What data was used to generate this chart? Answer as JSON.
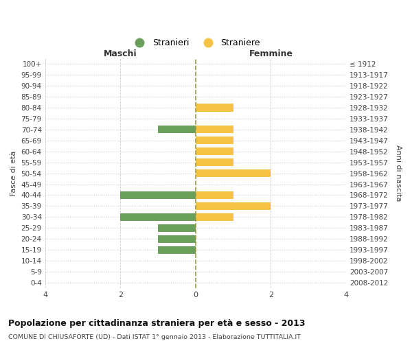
{
  "age_groups": [
    "100+",
    "95-99",
    "90-94",
    "85-89",
    "80-84",
    "75-79",
    "70-74",
    "65-69",
    "60-64",
    "55-59",
    "50-54",
    "45-49",
    "40-44",
    "35-39",
    "30-34",
    "25-29",
    "20-24",
    "15-19",
    "10-14",
    "5-9",
    "0-4"
  ],
  "birth_years": [
    "≤ 1912",
    "1913-1917",
    "1918-1922",
    "1923-1927",
    "1928-1932",
    "1933-1937",
    "1938-1942",
    "1943-1947",
    "1948-1952",
    "1953-1957",
    "1958-1962",
    "1963-1967",
    "1968-1972",
    "1973-1977",
    "1978-1982",
    "1983-1987",
    "1988-1992",
    "1993-1997",
    "1998-2002",
    "2003-2007",
    "2008-2012"
  ],
  "maschi_stranieri": [
    0,
    0,
    0,
    0,
    0,
    0,
    1,
    0,
    0,
    0,
    0,
    0,
    2,
    0,
    2,
    1,
    1,
    1,
    0,
    0,
    0
  ],
  "femmine_straniere": [
    0,
    0,
    0,
    0,
    1,
    0,
    1,
    1,
    1,
    1,
    2,
    0,
    1,
    2,
    1,
    0,
    0,
    0,
    0,
    0,
    0
  ],
  "color_maschi": "#6a9e5b",
  "color_femmine": "#f5c243",
  "xlim": 4,
  "title": "Popolazione per cittadinanza straniera per età e sesso - 2013",
  "subtitle": "COMUNE DI CHIUSAFORTE (UD) - Dati ISTAT 1° gennaio 2013 - Elaborazione TUTTITALIA.IT",
  "legend_maschi": "Stranieri",
  "legend_femmine": "Straniere",
  "xlabel_left": "Maschi",
  "xlabel_right": "Femmine",
  "ylabel": "Fasce di età",
  "ylabel_right": "Anni di nascita",
  "bg_color": "#ffffff",
  "grid_color": "#cccccc",
  "center_line_color": "#999944"
}
